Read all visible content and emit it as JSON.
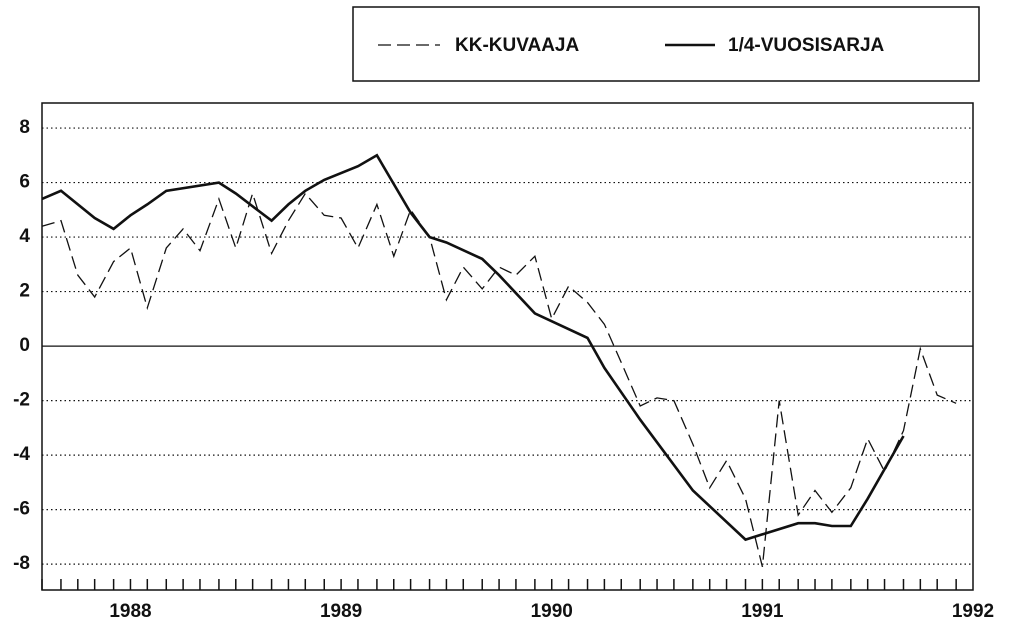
{
  "chart_data": {
    "type": "line",
    "series": [
      {
        "name": "KK-KUVAAJA",
        "color": "#111111",
        "dash": true,
        "x": [
          1987.58,
          1987.67,
          1987.75,
          1987.83,
          1987.92,
          1988.0,
          1988.08,
          1988.17,
          1988.25,
          1988.33,
          1988.42,
          1988.5,
          1988.58,
          1988.67,
          1988.75,
          1988.83,
          1988.92,
          1989.0,
          1989.08,
          1989.17,
          1989.25,
          1989.33,
          1989.42,
          1989.5,
          1989.58,
          1989.67,
          1989.75,
          1989.83,
          1989.92,
          1990.0,
          1990.08,
          1990.17,
          1990.25,
          1990.33,
          1990.42,
          1990.5,
          1990.58,
          1990.67,
          1990.75,
          1990.83,
          1990.92,
          1991.0,
          1991.08,
          1991.17,
          1991.25,
          1991.33,
          1991.42,
          1991.5,
          1991.58,
          1991.67,
          1991.75,
          1991.83,
          1991.92
        ],
        "values": [
          4.4,
          4.6,
          2.6,
          1.8,
          3.1,
          3.6,
          1.4,
          3.6,
          4.3,
          3.5,
          5.4,
          3.6,
          5.6,
          3.4,
          4.6,
          5.6,
          4.8,
          4.7,
          3.6,
          5.2,
          3.3,
          5.0,
          4.0,
          1.7,
          2.9,
          2.1,
          2.9,
          2.6,
          3.3,
          1.0,
          2.2,
          1.6,
          0.8,
          -0.6,
          -2.2,
          -1.9,
          -2.0,
          -3.6,
          -5.2,
          -4.2,
          -5.6,
          -8.1,
          -2.0,
          -6.2,
          -5.3,
          -6.1,
          -5.2,
          -3.4,
          -4.6,
          -3.1,
          -0.1,
          -1.8,
          -2.1
        ]
      },
      {
        "name": "1/4-VUOSISARJA",
        "color": "#111111",
        "dash": false,
        "x": [
          1987.58,
          1987.67,
          1987.83,
          1987.92,
          1988.0,
          1988.08,
          1988.17,
          1988.42,
          1988.5,
          1988.67,
          1988.75,
          1988.83,
          1988.92,
          1989.08,
          1989.17,
          1989.33,
          1989.42,
          1989.5,
          1989.67,
          1989.75,
          1989.92,
          1990.17,
          1990.25,
          1990.42,
          1990.67,
          1990.92,
          1991.17,
          1991.25,
          1991.33,
          1991.42,
          1991.5,
          1991.67
        ],
        "values": [
          5.4,
          5.7,
          4.7,
          4.3,
          4.8,
          5.2,
          5.7,
          6.0,
          5.6,
          4.6,
          5.2,
          5.7,
          6.1,
          6.6,
          7.0,
          4.9,
          4.0,
          3.8,
          3.2,
          2.6,
          1.2,
          0.3,
          -0.8,
          -2.7,
          -5.3,
          -7.1,
          -6.5,
          -6.5,
          -6.6,
          -6.6,
          -5.6,
          -3.3
        ]
      }
    ],
    "xlim": [
      1987.58,
      1992.0
    ],
    "xticks": [
      1988,
      1989,
      1990,
      1991,
      1992
    ],
    "ylim": [
      -8.95,
      8.92
    ],
    "yticks": [
      -8,
      -6,
      -4,
      -2,
      0,
      2,
      4,
      6,
      8
    ],
    "grid": true
  }
}
